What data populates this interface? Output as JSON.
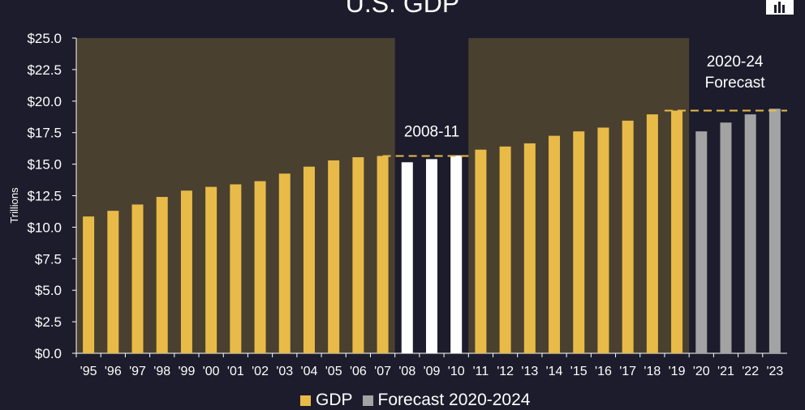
{
  "chart_data": {
    "type": "bar",
    "title": "U.S. GDP",
    "ylabel": "Trillions",
    "xlabel": "",
    "ylim": [
      0,
      25
    ],
    "yticks": [
      "$0.0",
      "$2.5",
      "$5.0",
      "$7.5",
      "$10.0",
      "$12.5",
      "$15.0",
      "$17.5",
      "$20.0",
      "$22.5",
      "$25.0"
    ],
    "categories": [
      "'95",
      "'96",
      "'97",
      "'98",
      "'99",
      "'00",
      "'01",
      "'02",
      "'03",
      "'04",
      "'05",
      "'06",
      "'07",
      "'08",
      "'09",
      "'10",
      "'11",
      "'12",
      "'13",
      "'14",
      "'15",
      "'16",
      "'17",
      "'18",
      "'19",
      "'20",
      "'21",
      "'22",
      "'23"
    ],
    "values": [
      10.85,
      11.3,
      11.8,
      12.4,
      12.9,
      13.2,
      13.4,
      13.65,
      14.25,
      14.8,
      15.3,
      15.55,
      15.65,
      15.15,
      15.4,
      15.7,
      16.15,
      16.4,
      16.65,
      17.25,
      17.6,
      17.9,
      18.45,
      18.95,
      19.25,
      17.6,
      18.3,
      18.95,
      19.4
    ],
    "bar_groups": [
      "gdp",
      "gdp",
      "gdp",
      "gdp",
      "gdp",
      "gdp",
      "gdp",
      "gdp",
      "gdp",
      "gdp",
      "gdp",
      "gdp",
      "gdp",
      "recession",
      "recession",
      "recession",
      "gdp",
      "gdp",
      "gdp",
      "gdp",
      "gdp",
      "gdp",
      "gdp",
      "gdp",
      "gdp",
      "forecast",
      "forecast",
      "forecast",
      "forecast"
    ],
    "annotations": [
      {
        "label": "2008-11",
        "reference_value": 15.65
      },
      {
        "label_line1": "2020-24",
        "label_line2": "Forecast",
        "reference_value": 19.25
      }
    ],
    "legend": {
      "placement": "bottom",
      "items": [
        {
          "name": "GDP",
          "color": "#e8bb48"
        },
        {
          "name": "Forecast 2020-2024",
          "color": "#a3a3a3"
        }
      ]
    },
    "grid": false,
    "colors": {
      "background": "#1c1c2c",
      "shaded_region": "#4a4030",
      "gdp": "#e8bb48",
      "recession": "#ffffff",
      "forecast": "#a3a3a3",
      "reference_line": "#e8bb48"
    }
  }
}
